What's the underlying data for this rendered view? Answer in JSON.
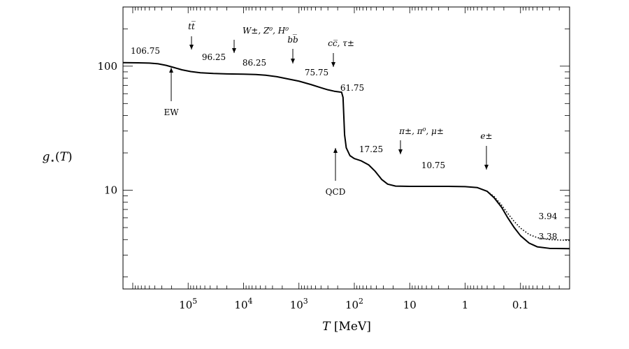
{
  "chart_data": {
    "type": "line",
    "title": "",
    "xlabel": "T [MeV]",
    "ylabel": "g⋆(T)",
    "x_scale": "log",
    "x_reversed": true,
    "y_scale": "log",
    "xlim": [
      1500000,
      0.013
    ],
    "ylim": [
      1.6,
      300
    ],
    "grid": false,
    "x_ticks": [
      {
        "value": 100000,
        "label": "10",
        "exp": "5"
      },
      {
        "value": 10000,
        "label": "10",
        "exp": "4"
      },
      {
        "value": 1000,
        "label": "10",
        "exp": "3"
      },
      {
        "value": 100,
        "label": "10",
        "exp": "2"
      },
      {
        "value": 10,
        "label": "10",
        "exp": ""
      },
      {
        "value": 1,
        "label": "1",
        "exp": ""
      },
      {
        "value": 0.1,
        "label": "0.1",
        "exp": ""
      }
    ],
    "y_ticks": [
      {
        "value": 100,
        "label": "100"
      },
      {
        "value": 10,
        "label": "10"
      }
    ],
    "series": [
      {
        "style": "solid",
        "points": [
          [
            1500000,
            106.75
          ],
          [
            800000,
            106.5
          ],
          [
            500000,
            105.9
          ],
          [
            350000,
            104.5
          ],
          [
            250000,
            101.5
          ],
          [
            180000,
            97.5
          ],
          [
            130000,
            93.5
          ],
          [
            90000,
            90.5
          ],
          [
            60000,
            88.5
          ],
          [
            35000,
            87.3
          ],
          [
            20000,
            86.6
          ],
          [
            10000,
            86.25
          ],
          [
            6000,
            85.6
          ],
          [
            4000,
            84.5
          ],
          [
            2500,
            82.3
          ],
          [
            1600,
            79.0
          ],
          [
            1000,
            75.75
          ],
          [
            600,
            71.0
          ],
          [
            400,
            67.0
          ],
          [
            300,
            64.5
          ],
          [
            230,
            62.8
          ],
          [
            180,
            61.9
          ],
          [
            170,
            61.75
          ],
          [
            160,
            56.0
          ],
          [
            155,
            40.0
          ],
          [
            150,
            28.0
          ],
          [
            140,
            22.0
          ],
          [
            120,
            19.0
          ],
          [
            100,
            18.0
          ],
          [
            75,
            17.25
          ],
          [
            55,
            16.0
          ],
          [
            42,
            14.2
          ],
          [
            32,
            12.2
          ],
          [
            25,
            11.2
          ],
          [
            18,
            10.8
          ],
          [
            10,
            10.75
          ],
          [
            5,
            10.75
          ],
          [
            2,
            10.75
          ],
          [
            1,
            10.7
          ],
          [
            0.6,
            10.5
          ],
          [
            0.4,
            9.8
          ],
          [
            0.3,
            8.7
          ],
          [
            0.22,
            7.3
          ],
          [
            0.17,
            6.0
          ],
          [
            0.13,
            5.0
          ],
          [
            0.1,
            4.3
          ],
          [
            0.07,
            3.75
          ],
          [
            0.05,
            3.5
          ],
          [
            0.03,
            3.4
          ],
          [
            0.013,
            3.38
          ]
        ]
      },
      {
        "style": "dotted",
        "points": [
          [
            0.4,
            9.8
          ],
          [
            0.3,
            8.9
          ],
          [
            0.22,
            7.6
          ],
          [
            0.17,
            6.5
          ],
          [
            0.13,
            5.6
          ],
          [
            0.1,
            4.95
          ],
          [
            0.07,
            4.4
          ],
          [
            0.05,
            4.15
          ],
          [
            0.03,
            4.0
          ],
          [
            0.013,
            3.94
          ]
        ]
      }
    ],
    "value_labels": [
      {
        "text": "106.75",
        "x": 1500000,
        "y": 106.75
      },
      {
        "text": "96.25",
        "x": 30000,
        "y": 96.25
      },
      {
        "text": "86.25",
        "x": 3500,
        "y": 86.25
      },
      {
        "text": "75.75",
        "x": 500,
        "y": 75.75
      },
      {
        "text": "61.75",
        "x": 90,
        "y": 61.75
      },
      {
        "text": "17.25",
        "x": 45,
        "y": 17.25
      },
      {
        "text": "10.75",
        "x": 1.6,
        "y": 10.75
      },
      {
        "text": "3.94",
        "x": 0.03,
        "y": 3.94
      },
      {
        "text": "3.38",
        "x": 0.03,
        "y": 3.38
      }
    ],
    "annotations": [
      {
        "id": "tt",
        "html": "t<tspan>t̅</tspan>",
        "text": "tt̅",
        "x": 180000,
        "direction": "down"
      },
      {
        "id": "wzh",
        "text": "W±, Z⁰, H⁰",
        "x": 10000,
        "direction": "down"
      },
      {
        "id": "bb",
        "text": "bb̅",
        "x": 1000,
        "direction": "down"
      },
      {
        "id": "cc",
        "text": "cc̅, τ±",
        "x": 200,
        "direction": "down"
      },
      {
        "id": "ew",
        "text": "EW",
        "x": 80000,
        "direction": "up"
      },
      {
        "id": "qcd",
        "text": "QCD",
        "x": 150,
        "direction": "up"
      },
      {
        "id": "pi",
        "text": "π±, π⁰, μ±",
        "x": 10,
        "direction": "down"
      },
      {
        "id": "e",
        "text": "e±",
        "x": 0.3,
        "direction": "down"
      }
    ]
  }
}
